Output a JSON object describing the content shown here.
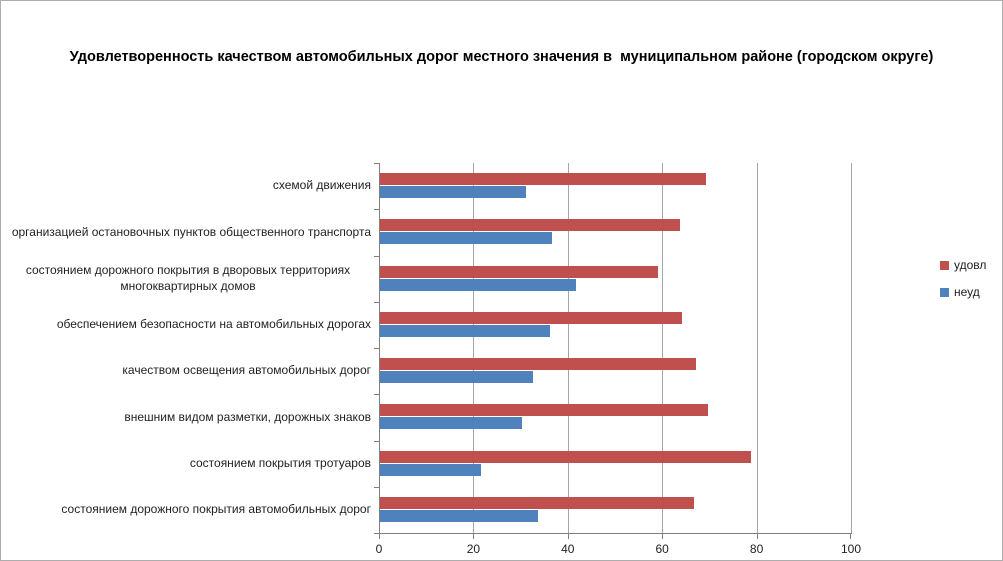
{
  "chart_data": {
    "type": "bar",
    "orientation": "horizontal",
    "title": "Удовлетворенность качеством автомобильных дорог местного значения в  муниципальном районе (городском округе)",
    "categories": [
      "схемой движения",
      "организацией остановочных пунктов общественного транспорта",
      "состоянием дорожного покрытия  в дворовых  территориях многоквартирных домов",
      "обеспечением  безопасности на  автомобильных дорогах",
      "качеством освещения  автомобильных дорог",
      "внешним  видом разметки, дорожных знаков",
      "состоянием покрытия тротуаров",
      "состоянием дорожного покрытия автомобильных дорог"
    ],
    "series": [
      {
        "name": "удовл",
        "color": "#c0504d",
        "values": [
          69,
          63.5,
          59,
          64,
          67,
          69.5,
          78.5,
          66.5
        ]
      },
      {
        "name": "неуд",
        "color": "#4f81bd",
        "values": [
          31,
          36.5,
          41.5,
          36,
          32.5,
          30,
          21.5,
          33.5
        ]
      }
    ],
    "xlabel": "",
    "ylabel": "",
    "xlim": [
      0,
      100
    ],
    "x_ticks": [
      0,
      20,
      40,
      60,
      80,
      100
    ],
    "grid": true,
    "legend_position": "right",
    "grid_color": "#a6a6a6",
    "axis_color": "#7f7f7f"
  }
}
